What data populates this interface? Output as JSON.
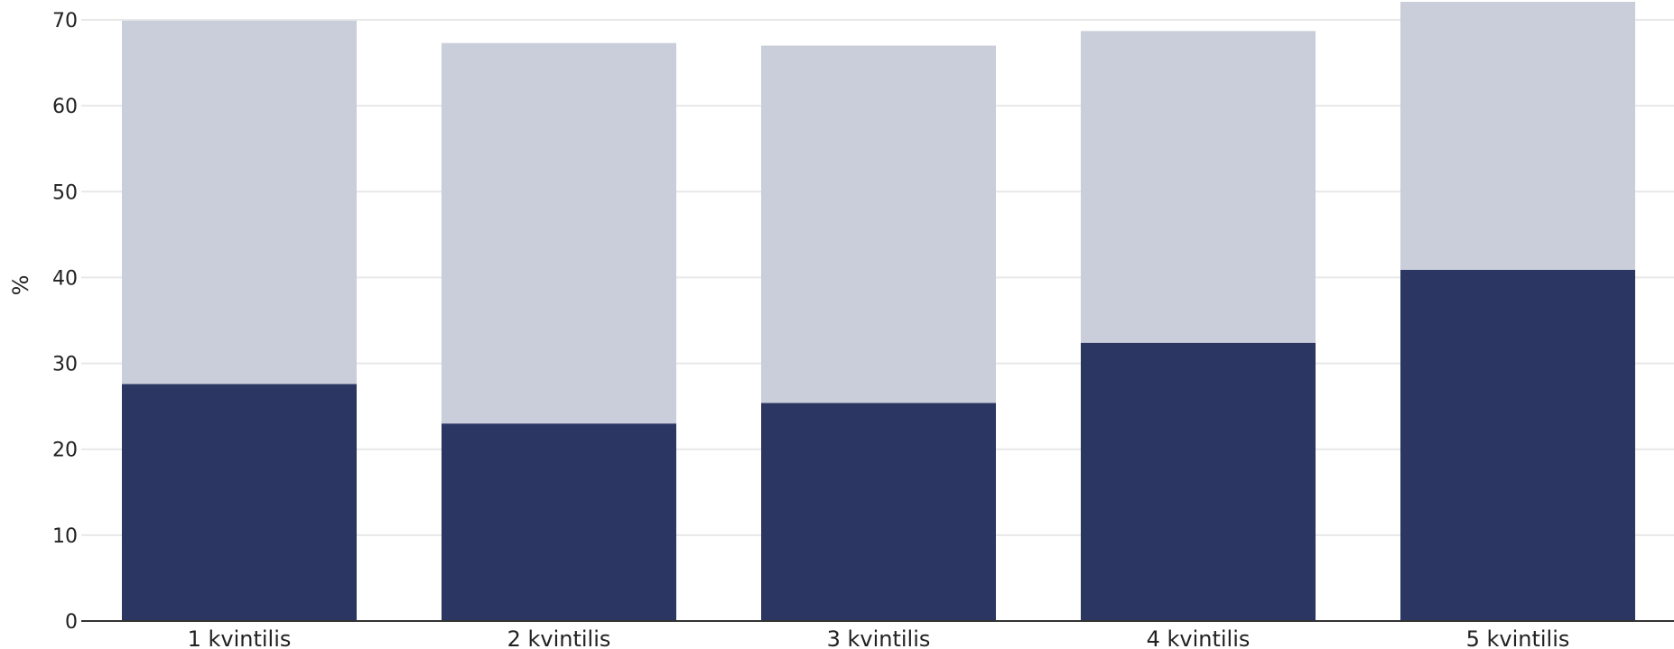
{
  "chart_data": {
    "type": "bar",
    "stacked": true,
    "title": "",
    "xlabel": "",
    "ylabel": "%",
    "ylim": [
      0,
      70
    ],
    "yticks": [
      0,
      10,
      20,
      30,
      40,
      50,
      60,
      70
    ],
    "grid": true,
    "categories": [
      "1 kvintilis",
      "2 kvintilis",
      "3 kvintilis",
      "4 kvintilis",
      "5 kvintilis"
    ],
    "series": [
      {
        "values": [
          27.6,
          23.0,
          25.4,
          32.4,
          40.9
        ],
        "color": "#2b3663"
      },
      {
        "values": [
          42.3,
          44.3,
          41.6,
          36.3,
          31.2
        ],
        "color": "#cacdda"
      }
    ],
    "colors": {
      "axis": "#333333",
      "grid": "#e8e8e8"
    }
  }
}
